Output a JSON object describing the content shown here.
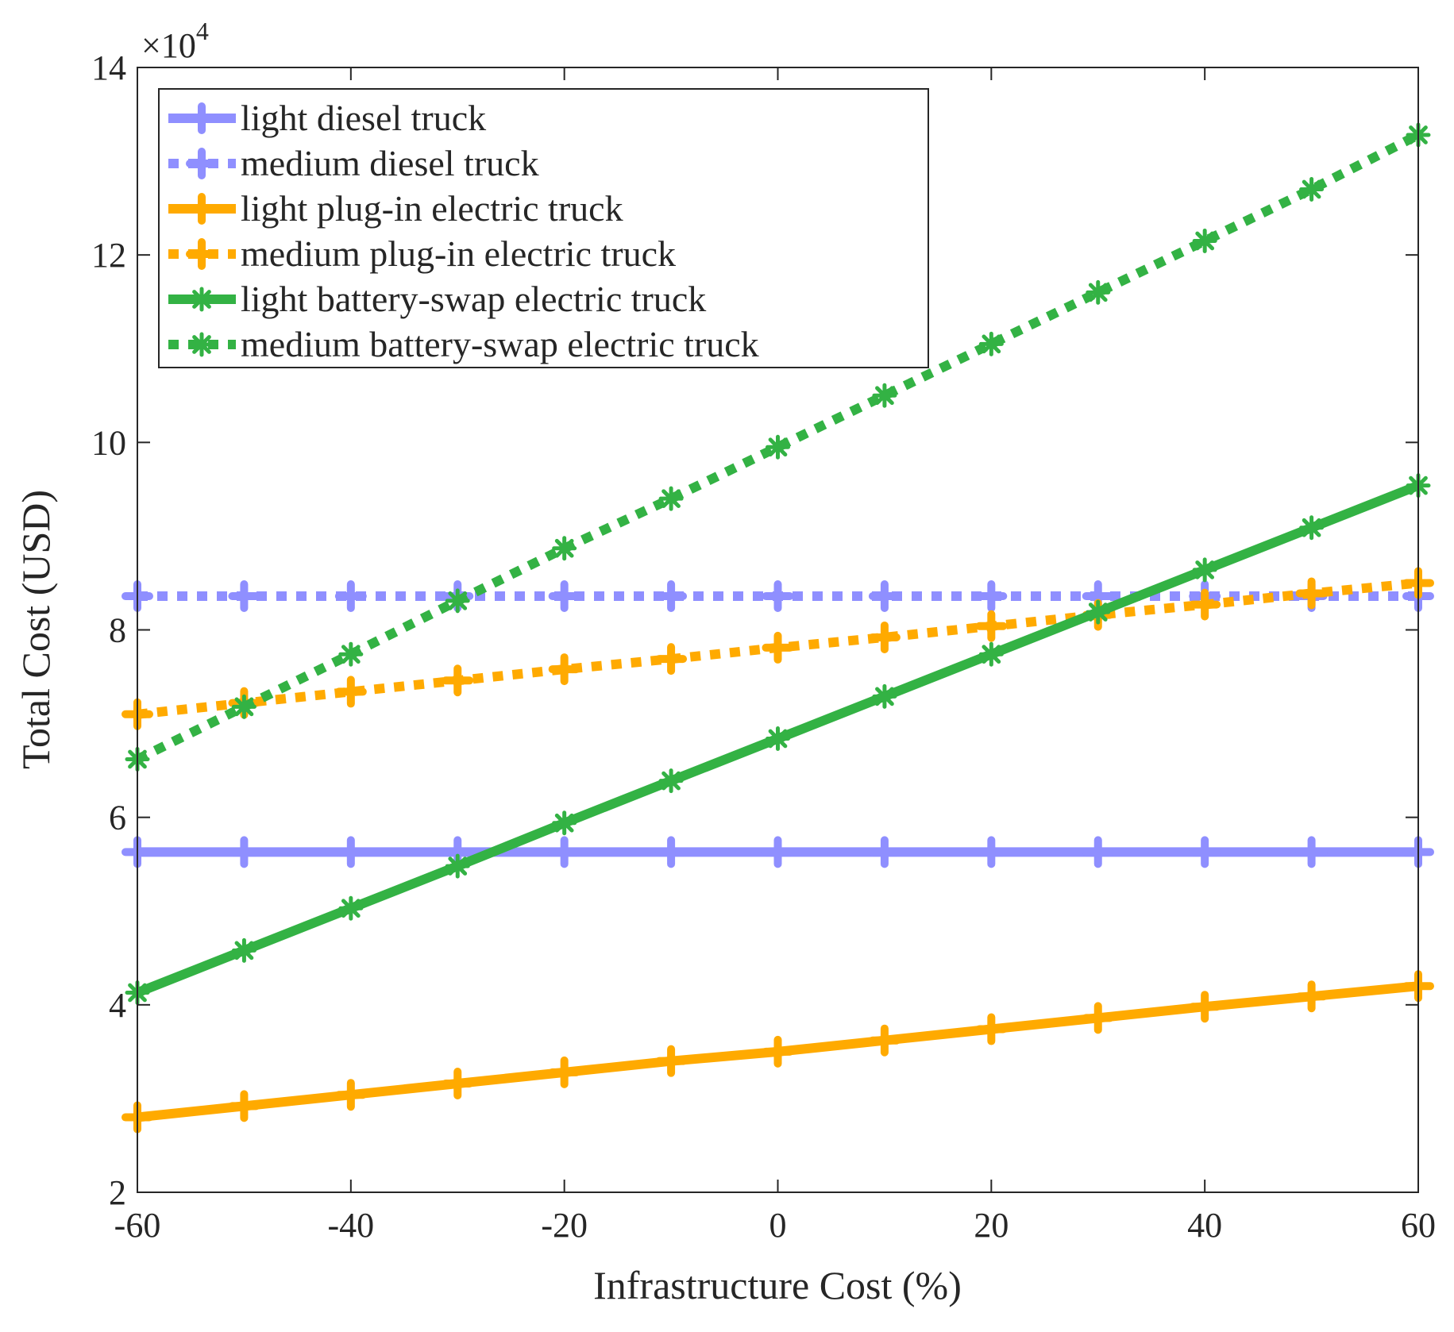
{
  "chart_data": {
    "type": "line",
    "title": "",
    "xlabel": "Infrastructure Cost (%)",
    "ylabel": "Total Cost (USD)",
    "y_multiplier_label": "×10",
    "y_multiplier_exponent": "4",
    "xlim": [
      -60,
      60
    ],
    "ylim": [
      2,
      14
    ],
    "x_ticks": [
      -60,
      -40,
      -20,
      0,
      20,
      40,
      60
    ],
    "x_tick_labels": [
      "-60",
      "-40",
      "-20",
      "0",
      "20",
      "40",
      "60"
    ],
    "y_ticks": [
      2,
      4,
      6,
      8,
      10,
      12,
      14
    ],
    "y_tick_labels": [
      "2",
      "4",
      "6",
      "8",
      "10",
      "12",
      "14"
    ],
    "legend_position": "top-left",
    "grid": false,
    "x": [
      -60,
      -50,
      -40,
      -30,
      -20,
      -10,
      0,
      10,
      20,
      30,
      40,
      50,
      60
    ],
    "series": [
      {
        "name": "light diesel truck",
        "color": "#8f8fff",
        "dash": "solid",
        "marker": "plus",
        "values": [
          5.63,
          5.63,
          5.63,
          5.63,
          5.63,
          5.63,
          5.63,
          5.63,
          5.63,
          5.63,
          5.63,
          5.63,
          5.63
        ]
      },
      {
        "name": "medium diesel truck",
        "color": "#8f8fff",
        "dash": "dotted",
        "marker": "plus",
        "values": [
          8.36,
          8.36,
          8.36,
          8.36,
          8.36,
          8.36,
          8.36,
          8.36,
          8.36,
          8.36,
          8.36,
          8.36,
          8.36
        ]
      },
      {
        "name": "light plug-in electric truck",
        "color": "#ffaa00",
        "dash": "solid",
        "marker": "plus",
        "values": [
          2.8,
          2.92,
          3.04,
          3.16,
          3.28,
          3.4,
          3.5,
          3.62,
          3.74,
          3.86,
          3.98,
          4.09,
          4.2
        ]
      },
      {
        "name": "medium plug-in electric truck",
        "color": "#ffaa00",
        "dash": "dotted",
        "marker": "plus",
        "values": [
          7.1,
          7.22,
          7.34,
          7.46,
          7.58,
          7.69,
          7.81,
          7.92,
          8.04,
          8.16,
          8.27,
          8.39,
          8.5
        ]
      },
      {
        "name": "light battery-swap electric truck",
        "color": "#33b244",
        "dash": "solid",
        "marker": "star",
        "values": [
          4.13,
          4.58,
          5.03,
          5.48,
          5.94,
          6.39,
          6.84,
          7.29,
          7.74,
          8.19,
          8.64,
          9.09,
          9.54
        ]
      },
      {
        "name": "medium battery-swap electric truck",
        "color": "#33b244",
        "dash": "dotted",
        "marker": "star",
        "values": [
          6.62,
          7.18,
          7.74,
          8.31,
          8.87,
          9.4,
          9.95,
          10.5,
          11.05,
          11.6,
          12.15,
          12.7,
          13.28
        ]
      }
    ]
  }
}
